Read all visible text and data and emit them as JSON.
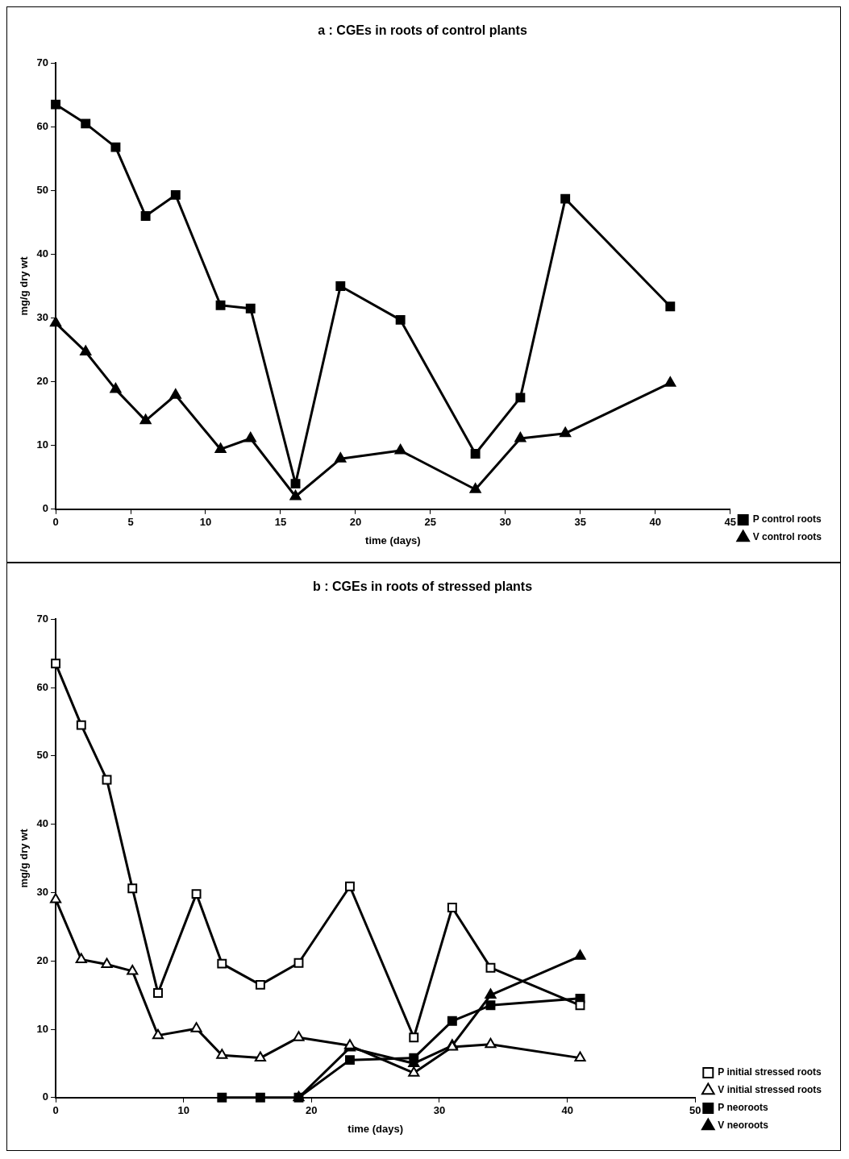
{
  "chart_data": [
    {
      "type": "line",
      "title": "a : CGEs in roots of control plants",
      "xlabel": "time (days)",
      "ylabel": "mg/g dry wt",
      "xlim": [
        0,
        45
      ],
      "xticks": [
        0,
        5,
        10,
        15,
        20,
        25,
        30,
        35,
        40,
        45
      ],
      "ylim": [
        0,
        70
      ],
      "yticks": [
        0,
        10,
        20,
        30,
        40,
        50,
        60,
        70
      ],
      "legend": "right",
      "grid": false,
      "series": [
        {
          "name": "P control roots",
          "color": "#000000",
          "marker": "square",
          "x": [
            0,
            2,
            4,
            6,
            8,
            11,
            13,
            16,
            19,
            23,
            28,
            31,
            34,
            41
          ],
          "values": [
            63.5,
            60.5,
            56.8,
            46,
            49.3,
            32,
            31.5,
            4,
            35,
            29.7,
            8.7,
            17.5,
            48.7,
            31.8
          ]
        },
        {
          "name": "V control roots",
          "color": "#000000",
          "marker": "triangle",
          "x": [
            0,
            2,
            4,
            6,
            8,
            11,
            13,
            16,
            19,
            23,
            28,
            31,
            34,
            41
          ],
          "values": [
            29.2,
            24.7,
            18.8,
            13.9,
            17.9,
            9.4,
            11.1,
            2,
            7.9,
            9.2,
            3.1,
            11.1,
            11.9,
            19.8
          ]
        }
      ]
    },
    {
      "type": "line",
      "title": "b : CGEs in roots of stressed plants",
      "xlabel": "time (days)",
      "ylabel": "mg/g dry wt",
      "xlim": [
        0,
        50
      ],
      "xticks": [
        0,
        10,
        20,
        30,
        40,
        50
      ],
      "ylim": [
        0,
        70
      ],
      "yticks": [
        0,
        10,
        20,
        30,
        40,
        50,
        60,
        70
      ],
      "legend": "right",
      "grid": false,
      "series": [
        {
          "name": "P initial stressed roots",
          "color": "#000000",
          "marker": "square",
          "colors": [
            "#ffffff",
            "#ffffff",
            "#ffffff",
            "#ffffff",
            "#ffffff",
            "#ffffff",
            "#ffffff",
            "#ffffff",
            "#ffffff",
            "#ffffff",
            "#ffffff",
            "#ffffff",
            "#ffffff",
            "#ffffff"
          ],
          "x": [
            0,
            2,
            4,
            6,
            8,
            11,
            13,
            16,
            19,
            23,
            28,
            31,
            34,
            41
          ],
          "values": [
            63.5,
            54.5,
            46.5,
            30.6,
            15.3,
            29.8,
            19.6,
            16.5,
            19.7,
            30.9,
            8.8,
            27.8,
            19,
            13.5
          ]
        },
        {
          "name": "V initial stressed roots",
          "color": "#000000",
          "marker": "triangle",
          "colors": [
            "#ffffff",
            "#ffffff",
            "#ffffff",
            "#ffffff",
            "#ffffff",
            "#ffffff",
            "#ffffff",
            "#ffffff",
            "#ffffff",
            "#ffffff",
            "#ffffff",
            "#ffffff",
            "#ffffff",
            "#ffffff"
          ],
          "x": [
            0,
            2,
            4,
            6,
            8,
            11,
            13,
            16,
            19,
            23,
            28,
            31,
            34,
            41
          ],
          "values": [
            29,
            20.2,
            19.5,
            18.5,
            9.1,
            10.1,
            6.2,
            5.8,
            8.8,
            7.6,
            3.6,
            7.4,
            7.8,
            5.8
          ]
        },
        {
          "name": "P neoroots",
          "color": "#000000",
          "marker": "square",
          "x": [
            13,
            16,
            19,
            23,
            28,
            31,
            34,
            41
          ],
          "values": [
            0,
            0,
            0,
            5.5,
            5.8,
            11.2,
            13.5,
            14.5
          ]
        },
        {
          "name": "V neoroots",
          "color": "#000000",
          "marker": "triangle",
          "x": [
            19,
            23,
            28,
            31,
            34,
            41
          ],
          "values": [
            0,
            7.3,
            5,
            7.6,
            15,
            20.7
          ]
        }
      ]
    }
  ]
}
